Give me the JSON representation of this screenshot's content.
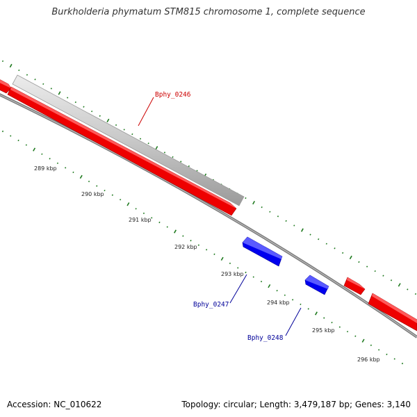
{
  "title": "Burkholderia phymatum STM815 chromosome 1, complete sequence",
  "footer": {
    "accession": "Accession: NC_010622",
    "topology": "Topology: circular; Length: 3,479,187 bp; Genes: 3,140"
  },
  "colors": {
    "forward_gene": "#ff0000",
    "reverse_gene": "#0000ff",
    "hit_bar": "#cccccc",
    "backbone": "#808080",
    "tick": "#1f7a1f",
    "label_forward": "#cc0000",
    "label_reverse": "#000099"
  },
  "scale_labels": [
    "289 kbp",
    "290 kbp",
    "291 kbp",
    "292 kbp",
    "293 kbp",
    "294 kbp",
    "295 kbp",
    "296 kbp"
  ],
  "genes": [
    {
      "name": "Bphy_0246",
      "strand": "forward"
    },
    {
      "name": "Bphy_0247",
      "strand": "reverse"
    },
    {
      "name": "Bphy_0248",
      "strand": "reverse"
    }
  ]
}
